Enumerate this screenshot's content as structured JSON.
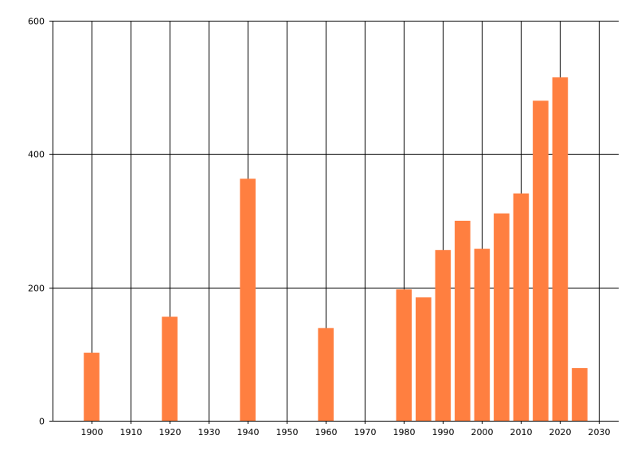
{
  "chart_data": {
    "type": "bar",
    "title": "",
    "xlabel": "",
    "ylabel": "",
    "x": [
      1900,
      1920,
      1940,
      1960,
      1980,
      1985,
      1990,
      1995,
      2000,
      2005,
      2010,
      2015,
      2020,
      2025
    ],
    "values": [
      102,
      156,
      363,
      139,
      197,
      185,
      256,
      300,
      258,
      311,
      341,
      480,
      515,
      79
    ],
    "xlim": [
      1890,
      2035
    ],
    "ylim": [
      0,
      600
    ],
    "x_ticks": [
      "1900",
      "1910",
      "1920",
      "1930",
      "1940",
      "1950",
      "1960",
      "1970",
      "1980",
      "1990",
      "2000",
      "2010",
      "2020",
      "2030"
    ],
    "y_ticks": [
      "0",
      "200",
      "400",
      "600"
    ],
    "grid": true,
    "bar_color": "#ff7f40",
    "axis_color": "#000000"
  }
}
